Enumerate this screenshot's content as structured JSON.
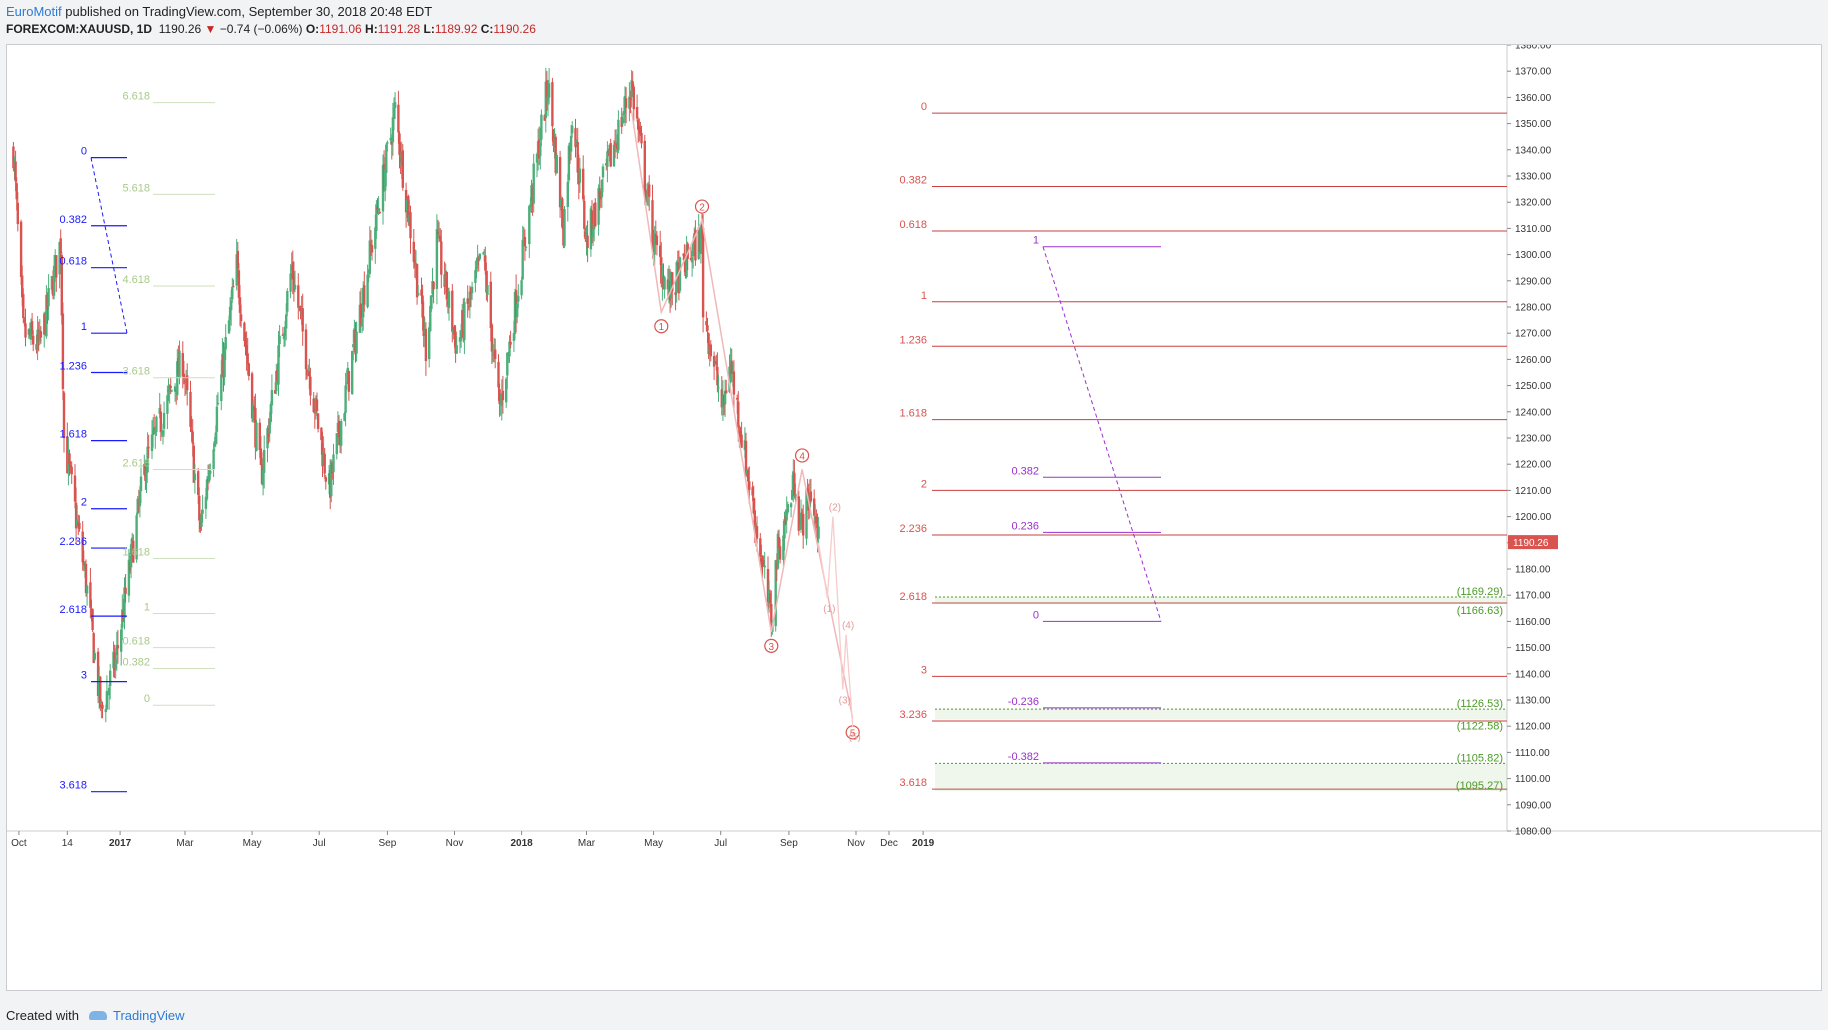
{
  "header": {
    "author": "EuroMotif",
    "published": "published on TradingView.com, September 30, 2018 20:48 EDT",
    "symbol": "FOREXCOM:XAUUSD, 1D",
    "last": "1190.26",
    "change": "−0.74 (−0.06%)",
    "o_label": "O:",
    "o": "1191.06",
    "h_label": "H:",
    "h": "1191.28",
    "l_label": "L:",
    "l": "1189.92",
    "c_label": "C:",
    "c": "1190.26"
  },
  "footer": {
    "created": "Created with",
    "brand": "TradingView"
  },
  "colors": {
    "up": "#4caf7a",
    "down": "#d9534f",
    "blue": "#1a1aff",
    "red_fib": "#c94040",
    "purple": "#9b30d0",
    "pale_green": "#a9c98b",
    "zone_green": "#4c9a2a",
    "wave_pink": "#f2b3b3"
  },
  "chart_data": {
    "type": "candlestick",
    "symbol": "XAUUSD",
    "ylim": [
      1080,
      1380
    ],
    "y_ticks": [
      1080,
      1090,
      1100,
      1110,
      1120,
      1130,
      1140,
      1150,
      1160,
      1170,
      1180,
      1190,
      1200,
      1210,
      1220,
      1230,
      1240,
      1250,
      1260,
      1270,
      1280,
      1290,
      1300,
      1310,
      1320,
      1330,
      1340,
      1350,
      1360,
      1370,
      1380
    ],
    "x_labels": [
      "Oct",
      "14",
      "2017",
      "Mar",
      "May",
      "Jul",
      "Sep",
      "Nov",
      "2018",
      "Mar",
      "May",
      "Jul",
      "Sep",
      "Nov",
      "Dec",
      "2019"
    ],
    "price_path": [
      [
        "2016-09-26",
        1340
      ],
      [
        "2016-10-05",
        1270
      ],
      [
        "2016-10-20",
        1265
      ],
      [
        "2016-11-08",
        1305
      ],
      [
        "2016-11-11",
        1230
      ],
      [
        "2016-12-01",
        1175
      ],
      [
        "2016-12-15",
        1125
      ],
      [
        "2016-12-28",
        1145
      ],
      [
        "2017-01-24",
        1220
      ],
      [
        "2017-02-27",
        1260
      ],
      [
        "2017-03-15",
        1195
      ],
      [
        "2017-04-17",
        1295
      ],
      [
        "2017-05-09",
        1215
      ],
      [
        "2017-06-06",
        1295
      ],
      [
        "2017-07-10",
        1210
      ],
      [
        "2017-09-08",
        1355
      ],
      [
        "2017-10-06",
        1265
      ],
      [
        "2017-10-16",
        1305
      ],
      [
        "2017-11-03",
        1265
      ],
      [
        "2017-11-27",
        1300
      ],
      [
        "2017-12-12",
        1240
      ],
      [
        "2018-01-25",
        1365
      ],
      [
        "2018-02-08",
        1310
      ],
      [
        "2018-02-16",
        1355
      ],
      [
        "2018-03-01",
        1305
      ],
      [
        "2018-04-11",
        1365
      ],
      [
        "2018-05-01",
        1305
      ],
      [
        "2018-05-15",
        1285
      ],
      [
        "2018-06-14",
        1308
      ],
      [
        "2018-06-15",
        1280
      ],
      [
        "2018-07-03",
        1240
      ],
      [
        "2018-07-09",
        1260
      ],
      [
        "2018-08-16",
        1160
      ],
      [
        "2018-08-21",
        1185
      ],
      [
        "2018-09-07",
        1215
      ],
      [
        "2018-09-11",
        1195
      ],
      [
        "2018-09-21",
        1210
      ],
      [
        "2018-09-28",
        1190
      ]
    ],
    "last_price": 1190.26,
    "fib_left_blue": {
      "levels": [
        "0",
        "0.382",
        "0.618",
        "1",
        "1.236",
        "1.618",
        "2",
        "2.236",
        "2.618",
        "3",
        "3.618"
      ],
      "prices": [
        1337,
        1311,
        1295,
        1270,
        1255,
        1229,
        1203,
        1188,
        1162,
        1137,
        1095
      ]
    },
    "fib_left_pale": {
      "levels": [
        "6.618",
        "5.618",
        "4.618",
        "3.618",
        "2.618",
        "1.618",
        "1",
        "0.618",
        "0.382",
        "0"
      ],
      "prices": [
        1358,
        1323,
        1288,
        1253,
        1218,
        1184,
        1163,
        1150,
        1142,
        1128
      ]
    },
    "fib_right_red": {
      "levels": [
        "0",
        "0.382",
        "0.618",
        "1",
        "1.236",
        "1.618",
        "2",
        "2.236",
        "2.618",
        "3",
        "3.236",
        "3.618"
      ],
      "prices": [
        1354,
        1326,
        1309,
        1282,
        1265,
        1237,
        1210,
        1193,
        1167,
        1139,
        1122,
        1096
      ]
    },
    "fib_right_purple": {
      "levels": [
        "1",
        "0.382",
        "0.236",
        "0",
        "-0.236",
        "-0.382"
      ],
      "prices": [
        1303,
        1215,
        1194,
        1160,
        1127,
        1106
      ]
    },
    "zones": [
      {
        "labels": [
          "(1169.29)",
          "(1166.63)"
        ],
        "high": 1169.29,
        "low": 1166.63
      },
      {
        "labels": [
          "(1126.53)",
          "(1122.58)"
        ],
        "high": 1126.53,
        "low": 1122.58
      },
      {
        "labels": [
          "(1105.82)",
          "(1095.27)"
        ],
        "high": 1105.82,
        "low": 1095.27
      }
    ],
    "waves_major": [
      {
        "label": "1",
        "date": "2018-05-08",
        "price": 1278
      },
      {
        "label": "2",
        "date": "2018-06-14",
        "price": 1313
      },
      {
        "label": "3",
        "date": "2018-08-16",
        "price": 1156
      },
      {
        "label": "4",
        "date": "2018-09-13",
        "price": 1218
      },
      {
        "label": "5",
        "date": "2018-10-29",
        "price": 1123
      }
    ],
    "waves_minor": [
      {
        "label": "(1)",
        "date": "2018-10-06",
        "price": 1169
      },
      {
        "label": "(2)",
        "date": "2018-10-11",
        "price": 1200
      },
      {
        "label": "(3)",
        "date": "2018-10-20",
        "price": 1134
      },
      {
        "label": "(4)",
        "date": "2018-10-23",
        "price": 1155
      },
      {
        "label": "(5)",
        "date": "2018-10-29",
        "price": 1120
      }
    ]
  }
}
